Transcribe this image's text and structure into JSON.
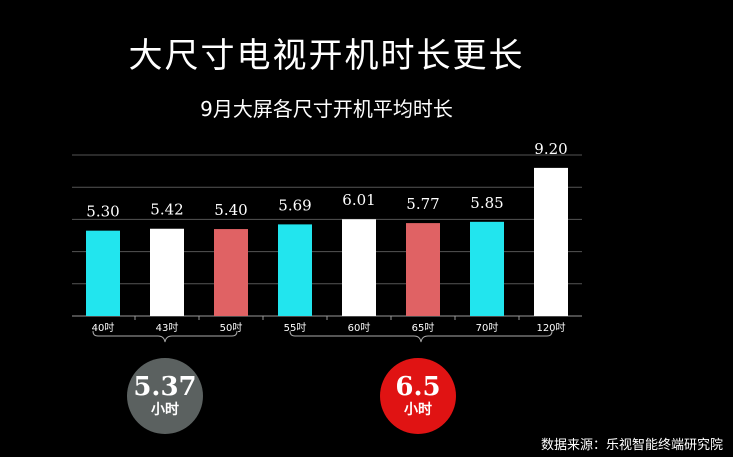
{
  "title": "大尺寸电视开机时长更长",
  "subtitle": "9月大屏各尺寸开机平均时长",
  "colors": {
    "cyan": "#22e5ee",
    "white": "#ffffff",
    "red": "#e06264",
    "grid": "#555555",
    "circle_gray": "#5b6160",
    "circle_red": "#e01313"
  },
  "chart_data": {
    "type": "bar",
    "categories": [
      "40吋",
      "43吋",
      "50吋",
      "55吋",
      "60吋",
      "65吋",
      "70吋",
      "120吋"
    ],
    "values": [
      5.3,
      5.42,
      5.4,
      5.69,
      6.01,
      5.77,
      5.85,
      9.2
    ],
    "value_labels": [
      "5.30",
      "5.42",
      "5.40",
      "5.69",
      "6.01",
      "5.77",
      "5.85",
      "9.20"
    ],
    "bar_colors": [
      "cyan",
      "white",
      "red",
      "cyan",
      "white",
      "red",
      "cyan",
      "white"
    ],
    "grid": true,
    "legend": "none"
  },
  "groups": [
    {
      "value": "5.37",
      "unit": "小时",
      "color": "circle_gray"
    },
    {
      "value": "6.5",
      "unit": "小时",
      "color": "circle_red"
    }
  ],
  "source": "数据来源：乐视智能终端研究院"
}
